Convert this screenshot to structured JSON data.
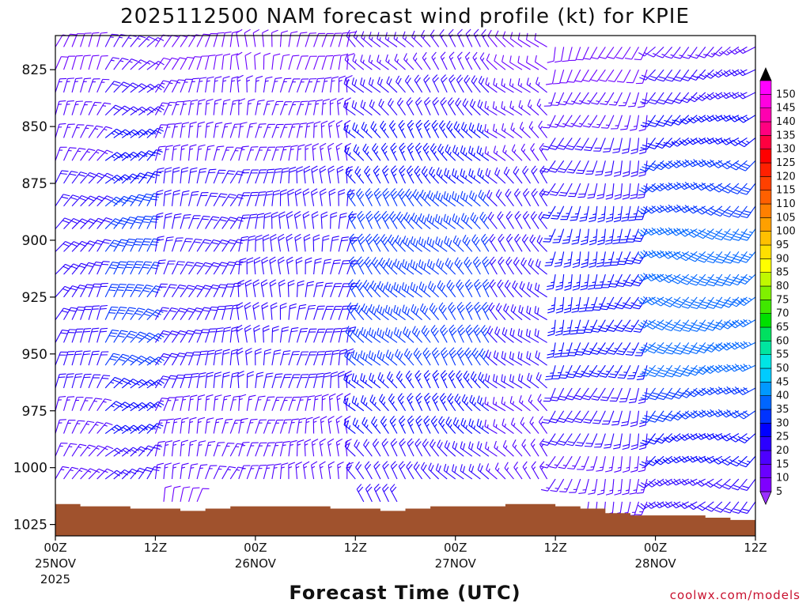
{
  "chart_data": {
    "type": "wind-barb-profile",
    "title": "2025112500 NAM forecast wind profile (kt) for KPIE",
    "xlabel": "Forecast Time (UTC)",
    "ylabel": "",
    "credit": "coolwx.com/models",
    "y_axis": {
      "units": "hPa",
      "range": [
        810,
        1030
      ],
      "inverted": true,
      "ticks": [
        "825",
        "850",
        "875",
        "900",
        "925",
        "950",
        "975",
        "1000",
        "1025"
      ],
      "tick_values": [
        825,
        850,
        875,
        900,
        925,
        950,
        975,
        1000,
        1025
      ]
    },
    "x_axis": {
      "units": "forecast hour",
      "range": [
        0,
        84
      ],
      "ticks": [
        {
          "hour": 0,
          "label": "00Z",
          "date": "25NOV",
          "year": "2025"
        },
        {
          "hour": 12,
          "label": "12Z",
          "date": "",
          "year": ""
        },
        {
          "hour": 24,
          "label": "00Z",
          "date": "26NOV",
          "year": ""
        },
        {
          "hour": 36,
          "label": "12Z",
          "date": "",
          "year": ""
        },
        {
          "hour": 48,
          "label": "00Z",
          "date": "27NOV",
          "year": ""
        },
        {
          "hour": 60,
          "label": "12Z",
          "date": "",
          "year": ""
        },
        {
          "hour": 72,
          "label": "00Z",
          "date": "28NOV",
          "year": ""
        },
        {
          "hour": 84,
          "label": "12Z",
          "date": "",
          "year": ""
        }
      ]
    },
    "colorbar": {
      "units": "kt",
      "labels": [
        "5",
        "10",
        "15",
        "20",
        "25",
        "30",
        "35",
        "40",
        "45",
        "50",
        "55",
        "60",
        "65",
        "70",
        "75",
        "80",
        "85",
        "90",
        "95",
        "100",
        "105",
        "110",
        "115",
        "120",
        "125",
        "130",
        "135",
        "140",
        "145",
        "150"
      ],
      "colors": [
        "#7f00ff",
        "#6a00ff",
        "#4d00ff",
        "#2b00ff",
        "#0000ff",
        "#0033ff",
        "#0066ff",
        "#0099ff",
        "#00ccff",
        "#00e5e5",
        "#00e5a0",
        "#00e060",
        "#00e000",
        "#40e800",
        "#80f000",
        "#c0f800",
        "#ffff00",
        "#ffe000",
        "#ffc000",
        "#ffa000",
        "#ff8000",
        "#ff6000",
        "#ff4000",
        "#ff2000",
        "#ff0000",
        "#ff0040",
        "#ff0080",
        "#ff00b0",
        "#ff00e0",
        "#ff00ff"
      ],
      "over_color": "#000000",
      "under_color": "#9a30ff"
    },
    "terrain": {
      "color": "#a0522d",
      "hours": [
        0,
        3,
        6,
        9,
        12,
        15,
        18,
        21,
        24,
        27,
        30,
        33,
        36,
        39,
        42,
        45,
        48,
        51,
        54,
        57,
        60,
        63,
        66,
        69,
        72,
        75,
        78,
        81,
        84
      ],
      "surface_pressure_hPa": [
        1016,
        1017,
        1017,
        1018,
        1018,
        1019,
        1018,
        1017,
        1017,
        1017,
        1017,
        1018,
        1018,
        1019,
        1018,
        1017,
        1017,
        1017,
        1016,
        1016,
        1017,
        1018,
        1020,
        1021,
        1021,
        1021,
        1022,
        1023,
        1024
      ]
    },
    "wind": {
      "hour_step": 1,
      "pressure_top_hPa": 815,
      "pressure_step_hPa": 10,
      "segments": [
        {
          "from_hour": 0,
          "to_hour": 6,
          "direction_deg": 30,
          "speed_kt": [
            10,
            20
          ]
        },
        {
          "from_hour": 6,
          "to_hour": 12,
          "direction_deg": 40,
          "speed_kt": [
            15,
            30
          ]
        },
        {
          "from_hour": 12,
          "to_hour": 22,
          "direction_deg": 20,
          "speed_kt": [
            10,
            20
          ]
        },
        {
          "from_hour": 22,
          "to_hour": 36,
          "direction_deg": 5,
          "speed_kt": [
            10,
            20
          ]
        },
        {
          "from_hour": 36,
          "to_hour": 53,
          "direction_deg": 320,
          "speed_kt": [
            15,
            30
          ]
        },
        {
          "from_hour": 53,
          "to_hour": 60,
          "direction_deg": 315,
          "speed_kt": [
            10,
            20
          ]
        },
        {
          "from_hour": 60,
          "to_hour": 72,
          "direction_deg": 200,
          "speed_kt": [
            10,
            25
          ]
        },
        {
          "from_hour": 72,
          "to_hour": 84,
          "direction_deg": 230,
          "speed_kt": [
            15,
            35
          ]
        }
      ]
    }
  }
}
